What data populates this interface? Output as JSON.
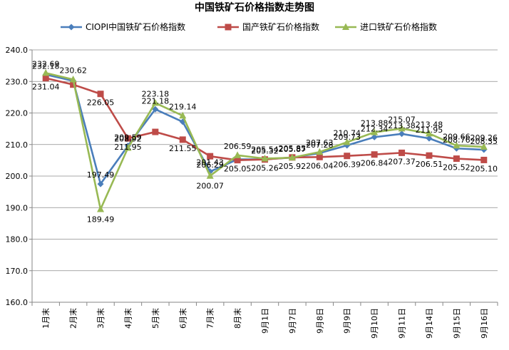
{
  "chart_data": {
    "type": "line",
    "title": "中国铁矿石价格指数走势图",
    "xlabel": "",
    "ylabel": "",
    "ylim": [
      160,
      240
    ],
    "yticks": [
      "160.0",
      "170.0",
      "180.0",
      "190.0",
      "200.0",
      "210.0",
      "220.0",
      "230.0",
      "240.0"
    ],
    "grid": "horizontal",
    "legend": "top",
    "categories": [
      "1月末",
      "2月末",
      "3月末",
      "4月末",
      "5月末",
      "6月末",
      "7月末",
      "8月末",
      "9月1日",
      "9月7日",
      "9月8日",
      "9月9日",
      "9月10日",
      "9月11日",
      "9月14日",
      "9月15日",
      "9月16日"
    ],
    "series": [
      {
        "name": "CIOPI中国铁矿石价格指数",
        "color": "#4a7ebb",
        "marker": "diamond",
        "values": [
          232.18,
          230.2,
          197.49,
          209.59,
          221.18,
          217.2,
          201.43,
          205.3,
          205.32,
          205.87,
          207.28,
          209.73,
          212.34,
          213.38,
          211.95,
          208.76,
          208.35
        ],
        "labels": [
          "232.18",
          "",
          "197.49",
          "209.59",
          "221.18",
          "",
          "201.43",
          "",
          "205.32",
          "205.87",
          "207.28",
          "209.73",
          "212.34",
          "213.38",
          "211.95",
          "208.76",
          "208.35"
        ]
      },
      {
        "name": "国产铁矿石价格指数",
        "color": "#be4b48",
        "marker": "square",
        "values": [
          231.04,
          229.0,
          226.05,
          211.95,
          214.0,
          211.55,
          206.29,
          205.05,
          205.26,
          205.92,
          206.04,
          206.39,
          206.84,
          207.37,
          206.51,
          205.52,
          205.1
        ],
        "labels": [
          "231.04",
          "",
          "226.05",
          "211.95",
          "",
          "211.55",
          "206.29",
          "205.05",
          "205.26",
          "205.92",
          "206.04",
          "206.39",
          "206.84",
          "207.37",
          "206.51",
          "205.52",
          "205.10"
        ]
      },
      {
        "name": "进口铁矿石价格指数",
        "color": "#98b954",
        "marker": "triangle",
        "values": [
          232.69,
          230.62,
          189.49,
          208.92,
          223.18,
          219.14,
          200.07,
          206.59,
          205.54,
          205.85,
          207.63,
          210.74,
          213.88,
          215.07,
          213.48,
          209.66,
          209.26
        ],
        "labels": [
          "232.69",
          "230.62",
          "189.49",
          "208.92",
          "223.18",
          "219.14",
          "200.07",
          "206.59",
          "205.54",
          "205.85",
          "207.63",
          "210.74",
          "213.88",
          "215.07",
          "213.48",
          "209.66",
          "209.26"
        ]
      }
    ]
  }
}
